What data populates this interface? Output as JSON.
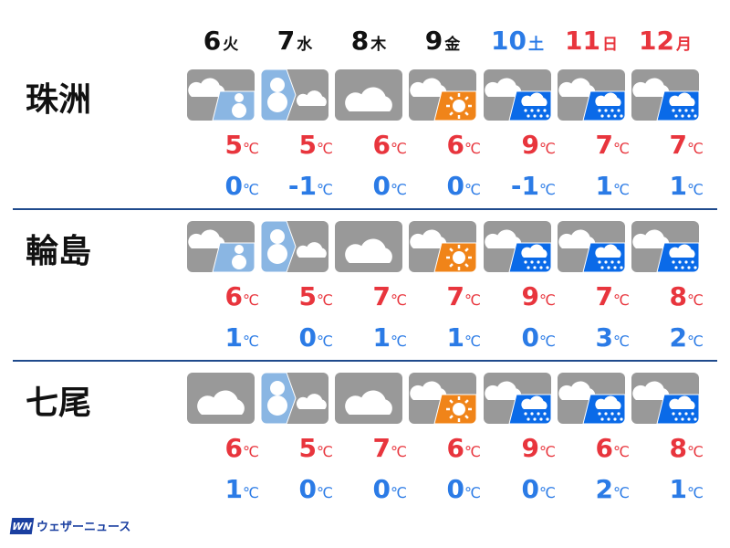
{
  "colors": {
    "high": "#e8353d",
    "low": "#2b7be6",
    "weekday": "#111111",
    "saturday": "#2b7be6",
    "holiday": "#e8353d",
    "divider": "#1f4a8c",
    "icon_bg": "#999999",
    "snow": "#8ab6e3",
    "rain": "#0a6ae8",
    "sun": "#f08419"
  },
  "days": [
    {
      "date": "6",
      "weekday": "火",
      "kind": "weekday"
    },
    {
      "date": "7",
      "weekday": "水",
      "kind": "weekday"
    },
    {
      "date": "8",
      "weekday": "木",
      "kind": "weekday"
    },
    {
      "date": "9",
      "weekday": "金",
      "kind": "weekday"
    },
    {
      "date": "10",
      "weekday": "土",
      "kind": "saturday"
    },
    {
      "date": "11",
      "weekday": "日",
      "kind": "holiday"
    },
    {
      "date": "12",
      "weekday": "月",
      "kind": "holiday"
    }
  ],
  "unit": "℃",
  "cities": [
    {
      "name": "珠洲",
      "icons": [
        "cloudy-then-snow-icon",
        "snow-then-cloudy-icon",
        "cloudy-icon",
        "cloudy-then-sunny-icon",
        "cloudy-then-rain-icon",
        "cloudy-then-rain-icon",
        "cloudy-then-rain-icon"
      ],
      "high": [
        "5",
        "5",
        "6",
        "6",
        "9",
        "7",
        "7"
      ],
      "low": [
        "0",
        "-1",
        "0",
        "0",
        "-1",
        "1",
        "1"
      ]
    },
    {
      "name": "輪島",
      "icons": [
        "cloudy-then-snow-icon",
        "snow-then-cloudy-icon",
        "cloudy-icon",
        "cloudy-then-sunny-icon",
        "cloudy-then-rain-icon",
        "cloudy-then-rain-icon",
        "cloudy-then-rain-icon"
      ],
      "high": [
        "6",
        "5",
        "7",
        "7",
        "9",
        "7",
        "8"
      ],
      "low": [
        "1",
        "0",
        "1",
        "1",
        "0",
        "3",
        "2"
      ]
    },
    {
      "name": "七尾",
      "icons": [
        "cloudy-icon",
        "snow-then-cloudy-icon",
        "cloudy-icon",
        "cloudy-then-sunny-icon",
        "cloudy-then-rain-icon",
        "cloudy-then-rain-icon",
        "cloudy-then-rain-icon"
      ],
      "high": [
        "6",
        "5",
        "7",
        "6",
        "9",
        "6",
        "8"
      ],
      "low": [
        "1",
        "0",
        "0",
        "0",
        "0",
        "2",
        "1"
      ]
    }
  ],
  "logo": {
    "mark": "WN",
    "text": "ウェザーニュース"
  }
}
